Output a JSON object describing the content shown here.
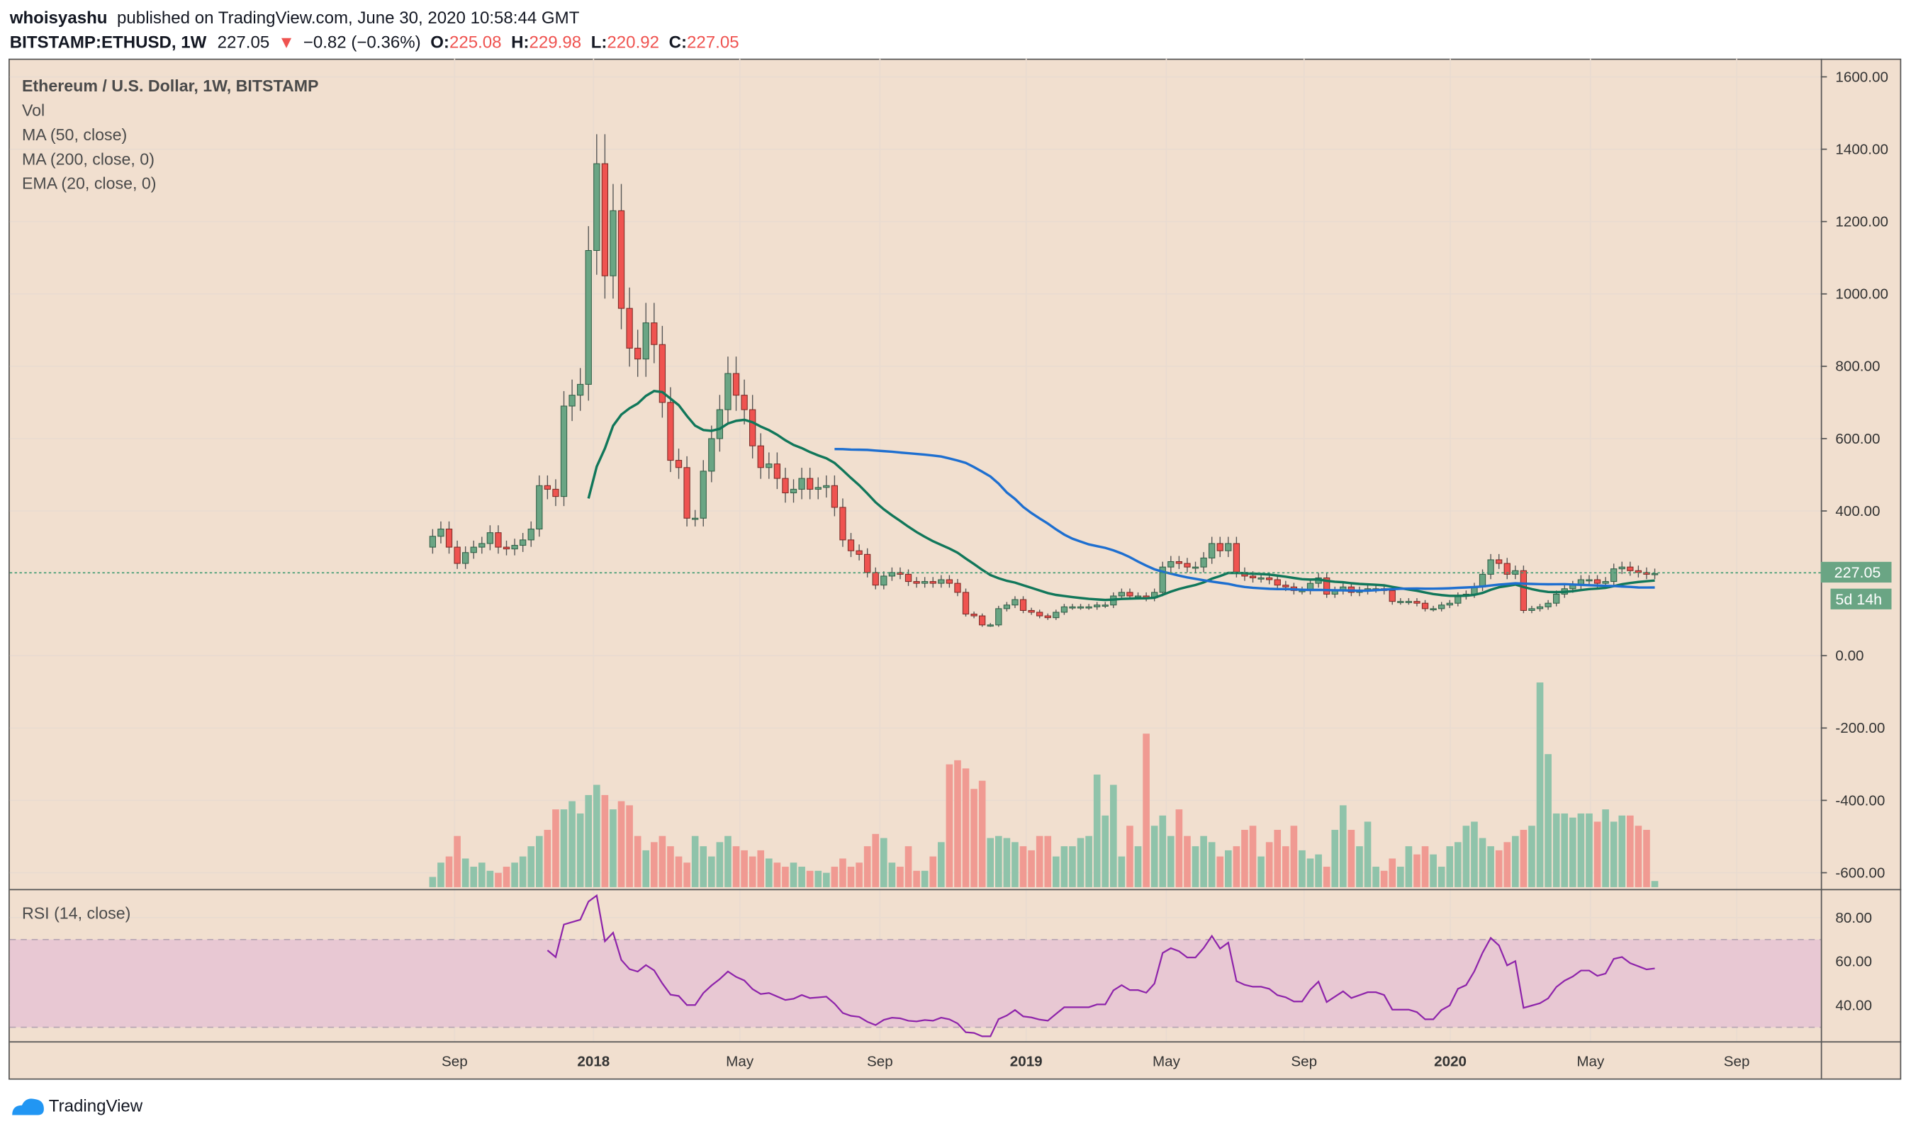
{
  "header": {
    "author": "whoisyashu",
    "published": "published on TradingView.com, June 30, 2020 10:58:44 GMT",
    "symbol": "BITSTAMP:ETHUSD, 1W",
    "last": "227.05",
    "change": "−0.82 (−0.36%)",
    "o_label": "O:",
    "o": "225.08",
    "h_label": "H:",
    "h": "229.98",
    "l_label": "L:",
    "l": "220.92",
    "c_label": "C:",
    "c": "227.05"
  },
  "legend": {
    "title": "Ethereum / U.S. Dollar, 1W, BITSTAMP",
    "vol": "Vol",
    "ma50": "MA (50, close)",
    "ma200": "MA (200, close, 0)",
    "ema20": "EMA (20, close, 0)",
    "rsi": "RSI (14, close)"
  },
  "price_label": "227.05",
  "countdown_label": "5d 14h",
  "logo_text": "TradingView",
  "colors": {
    "background": "#f1dfcf",
    "up": "#6aa584",
    "down": "#ef5350",
    "ema": "#11775a",
    "ma": "#1e6fd0",
    "rsi": "#8e24aa",
    "rsi_band": "#e8c8d3"
  },
  "chart_data": {
    "type": "candlestick",
    "title": "Ethereum / U.S. Dollar, 1W, BITSTAMP",
    "first_open": 300,
    "close": [
      330,
      350,
      300,
      255,
      285,
      300,
      310,
      340,
      300,
      295,
      305,
      320,
      350,
      470,
      460,
      440,
      690,
      720,
      750,
      1120,
      1360,
      1050,
      1230,
      960,
      850,
      820,
      920,
      860,
      700,
      540,
      520,
      380,
      380,
      510,
      600,
      680,
      780,
      720,
      680,
      580,
      520,
      530,
      490,
      450,
      460,
      490,
      460,
      465,
      470,
      410,
      320,
      290,
      280,
      230,
      195,
      220,
      230,
      225,
      205,
      200,
      205,
      200,
      210,
      200,
      175,
      115,
      110,
      85,
      85,
      130,
      140,
      155,
      125,
      120,
      110,
      105,
      120,
      135,
      135,
      135,
      135,
      140,
      140,
      165,
      175,
      165,
      165,
      160,
      175,
      245,
      260,
      255,
      245,
      245,
      270,
      310,
      290,
      310,
      230,
      220,
      215,
      215,
      210,
      195,
      190,
      180,
      180,
      200,
      215,
      170,
      180,
      190,
      175,
      180,
      185,
      185,
      180,
      150,
      150,
      150,
      145,
      130,
      130,
      140,
      145,
      165,
      170,
      190,
      225,
      265,
      255,
      225,
      235,
      125,
      130,
      135,
      145,
      170,
      185,
      195,
      210,
      210,
      200,
      205,
      240,
      245,
      235,
      230,
      225,
      227.05
    ],
    "volume": [
      5,
      12,
      15,
      25,
      14,
      10,
      12,
      8,
      7,
      10,
      12,
      15,
      20,
      25,
      28,
      38,
      38,
      42,
      36,
      45,
      50,
      45,
      38,
      42,
      40,
      25,
      18,
      22,
      25,
      20,
      15,
      12,
      25,
      20,
      15,
      22,
      25,
      20,
      18,
      15,
      18,
      14,
      12,
      10,
      12,
      10,
      8,
      8,
      7,
      10,
      14,
      10,
      12,
      20,
      26,
      24,
      12,
      10,
      20,
      8,
      8,
      15,
      22,
      60,
      62,
      58,
      48,
      52,
      24,
      25,
      24,
      22,
      20,
      18,
      25,
      25,
      15,
      20,
      20,
      24,
      25,
      55,
      35,
      50,
      15,
      30,
      20,
      75,
      30,
      35,
      25,
      38,
      25,
      20,
      25,
      22,
      15,
      18,
      20,
      28,
      30,
      15,
      22,
      28,
      20,
      30,
      18,
      14,
      16,
      10,
      28,
      40,
      28,
      20,
      32,
      10,
      8,
      14,
      10,
      20,
      16,
      20,
      16,
      10,
      20,
      22,
      30,
      32,
      24,
      20,
      18,
      22,
      25,
      28,
      30,
      100,
      65,
      36,
      36,
      34,
      36,
      36,
      32,
      38,
      32,
      35,
      35,
      30,
      28,
      3
    ],
    "price_axis": {
      "ticks": [
        "1600.00",
        "1400.00",
        "1200.00",
        "1000.00",
        "800.00",
        "600.00",
        "400.00",
        "0.00",
        "-200.00",
        "-400.00",
        "-600.00"
      ],
      "ylim": [
        -650,
        1650
      ]
    },
    "rsi_axis": {
      "ticks": [
        "80.00",
        "60.00",
        "40.00"
      ],
      "bands": [
        30,
        70
      ]
    },
    "time_axis": {
      "ticks": [
        "Sep",
        "2018",
        "May",
        "Sep",
        "2019",
        "May",
        "Sep",
        "2020",
        "May",
        "Sep"
      ]
    },
    "indicators": [
      "EMA 20",
      "MA 50",
      "RSI 14"
    ]
  }
}
